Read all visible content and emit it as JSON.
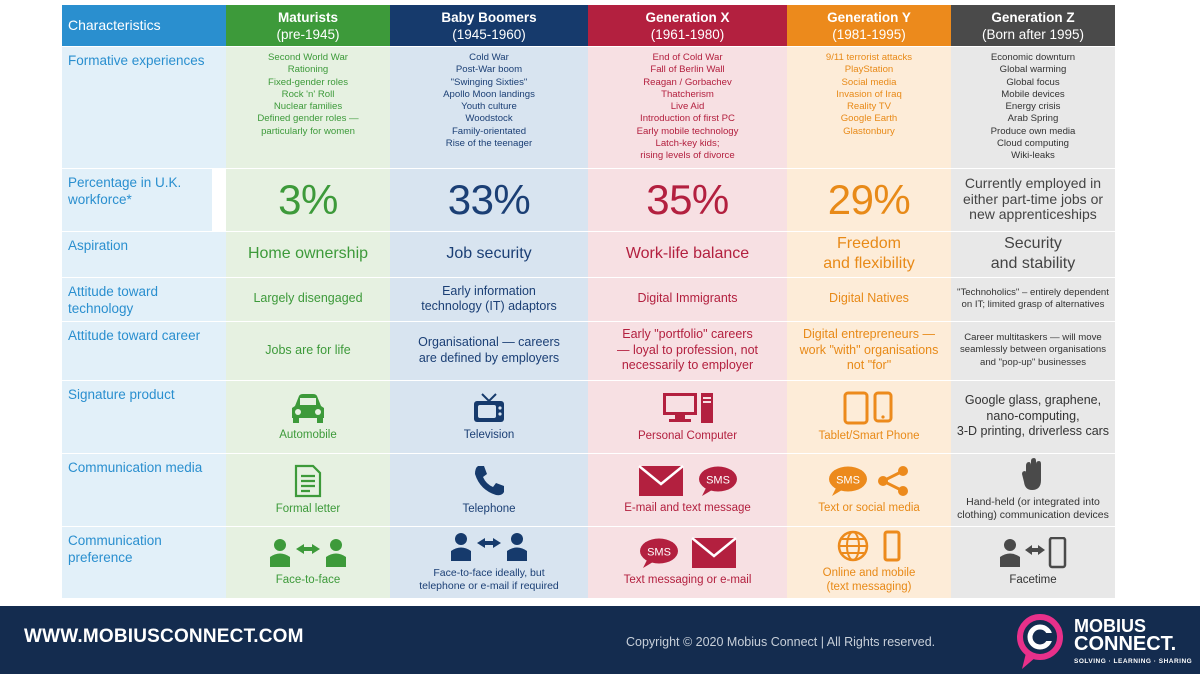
{
  "columns": [
    {
      "name": "Maturists",
      "period": "(pre-1945)",
      "color": "#3d9a3a",
      "tint": "#e6f1e1",
      "text": "#3d9a3a"
    },
    {
      "name": "Baby Boomers",
      "period": "(1945-1960)",
      "color": "#163a6c",
      "tint": "#d8e4f0",
      "text": "#1b3f75"
    },
    {
      "name": "Generation X",
      "period": "(1961-1980)",
      "color": "#b3203f",
      "tint": "#f7e0e3",
      "text": "#b3203f"
    },
    {
      "name": "Generation Y",
      "period": "(1981-1995)",
      "color": "#ec8a1c",
      "tint": "#fdecd8",
      "text": "#e88a18"
    },
    {
      "name": "Generation Z",
      "period": "(Born after 1995)",
      "color": "#4a4a4a",
      "tint": "#e8e8e8",
      "text": "#444444"
    }
  ],
  "header_label": "Characteristics",
  "label_col": {
    "header_color": "#2a8fcf",
    "tint": "#e2f0f9"
  },
  "row_labels": {
    "formative": "Formative experiences",
    "percentage": "Percentage in U.K. workforce*",
    "aspiration": "Aspiration",
    "technology": "Attitude toward technology",
    "career": "Attitude toward career",
    "product": "Signature product",
    "media": "Communication media",
    "preference": "Communication preference"
  },
  "formative": [
    [
      "Second World War",
      "Rationing",
      "Fixed-gender roles",
      "Rock 'n' Roll",
      "Nuclear families",
      "Defined gender roles —",
      "particularly for women"
    ],
    [
      "Cold War",
      "Post-War boom",
      "\"Swinging Sixties\"",
      "Apollo Moon landings",
      "Youth culture",
      "Woodstock",
      "Family-orientated",
      "Rise of the teenager"
    ],
    [
      "End of Cold War",
      "Fall of Berlin Wall",
      "Reagan / Gorbachev",
      "Thatcherism",
      "Live Aid",
      "Introduction of first PC",
      "Early mobile technology",
      "Latch-key kids;",
      "rising levels of divorce"
    ],
    [
      "9/11 terrorist attacks",
      "PlayStation",
      "Social media",
      "Invasion of Iraq",
      "Reality TV",
      "Google Earth",
      "Glastonbury"
    ],
    [
      "Economic downturn",
      "Global warming",
      "Global focus",
      "Mobile devices",
      "Energy crisis",
      "Arab Spring",
      "Produce own media",
      "Cloud computing",
      "Wiki-leaks"
    ]
  ],
  "percentage": [
    "3%",
    "33%",
    "35%",
    "29%"
  ],
  "percentage_z": [
    "Currently employed in",
    "either part-time jobs or",
    "new apprenticeships"
  ],
  "aspiration": [
    [
      "Home ownership"
    ],
    [
      "Job security"
    ],
    [
      "Work-life balance"
    ],
    [
      "Freedom",
      "and flexibility"
    ],
    [
      "Security",
      "and stability"
    ]
  ],
  "technology": [
    [
      "Largely disengaged"
    ],
    [
      "Early information",
      "technology (IT) adaptors"
    ],
    [
      "Digital Immigrants"
    ],
    [
      "Digital Natives"
    ],
    [
      "\"Technoholics\" – entirely dependent",
      "on IT; limited grasp of alternatives"
    ]
  ],
  "career": [
    [
      "Jobs are for life"
    ],
    [
      "Organisational — careers",
      "are defined by employers"
    ],
    [
      "Early \"portfolio\" careers",
      "— loyal to profession, not",
      "necessarily to employer"
    ],
    [
      "Digital entrepreneurs —",
      "work \"with\" organisations",
      "not \"for\""
    ],
    [
      "Career multitaskers — will move",
      "seamlessly between organisations",
      "and \"pop-up\" businesses"
    ]
  ],
  "product": [
    [
      "Automobile"
    ],
    [
      "Television"
    ],
    [
      "Personal Computer"
    ],
    [
      "Tablet/Smart Phone"
    ],
    [
      "Google glass, graphene,",
      "nano-computing,",
      "3-D printing, driverless cars"
    ]
  ],
  "media": [
    [
      "Formal letter"
    ],
    [
      "Telephone"
    ],
    [
      "E-mail and text message"
    ],
    [
      "Text or social media"
    ],
    [
      "Hand-held (or integrated into",
      "clothing) communication devices"
    ]
  ],
  "preference": [
    [
      "Face-to-face"
    ],
    [
      "Face-to-face ideally, but",
      "telephone or e-mail if required"
    ],
    [
      "Text messaging or e-mail"
    ],
    [
      "Online and mobile",
      "(text messaging)"
    ],
    [
      "Facetime"
    ]
  ],
  "sms_label": "SMS",
  "footer": {
    "url": "WWW.MOBIUSCONNECT.COM",
    "copyright": "Copyright © 2020 Mobius Connect | All Rights reserved.",
    "logo_line1": "MOBIUS",
    "logo_line2": "CONNECT.",
    "logo_tag": "SOLVING · LEARNING · SHARING",
    "color": "#142c4f"
  },
  "icons": {
    "product": [
      "car-icon",
      "tv-icon",
      "computer-icon",
      "tablet-phone-icon"
    ],
    "media": [
      "letter-icon",
      "phone-icon",
      "email-sms-icon",
      "sms-share-icon",
      "hand-icon"
    ],
    "preference": [
      "face-to-face-icon",
      "face-to-face-icon",
      "sms-email-icon",
      "globe-mobile-icon",
      "facetime-icon"
    ]
  }
}
